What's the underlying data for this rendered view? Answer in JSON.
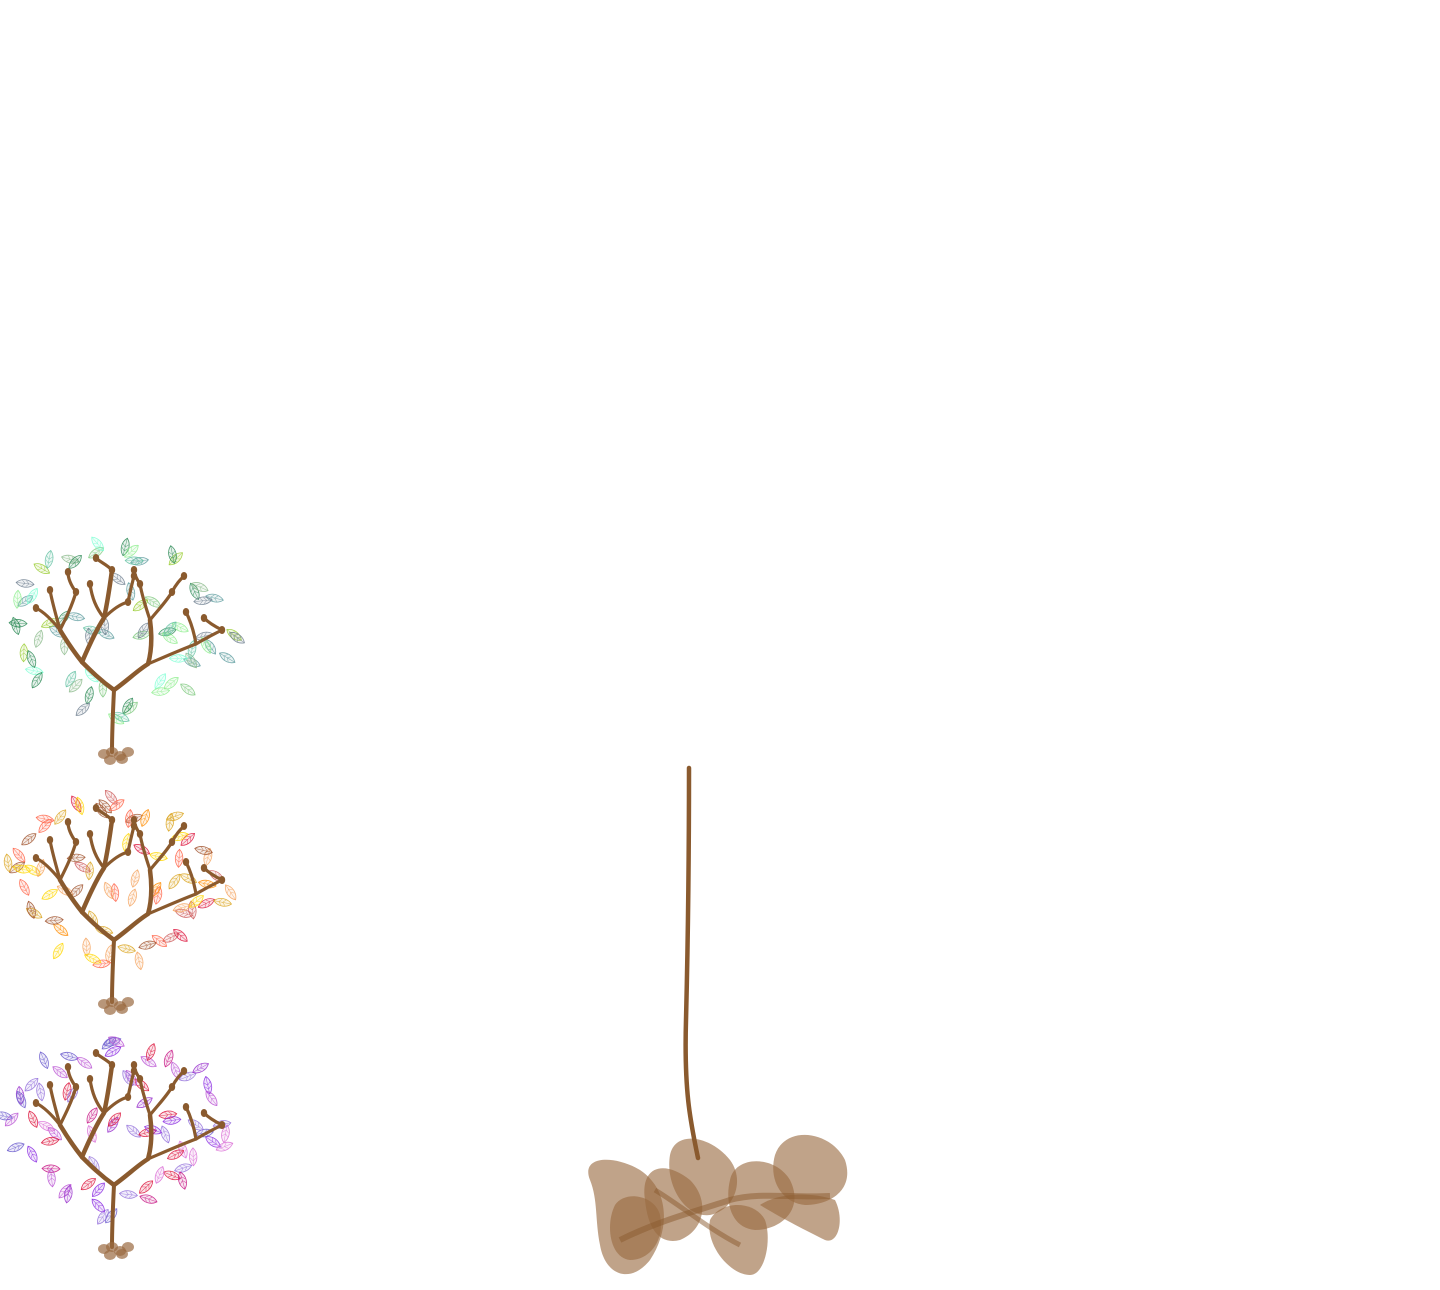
{
  "colors": {
    "background": "#ffffff",
    "trunk": "#8a5a2e",
    "root_blob": "#9a6a40"
  },
  "thumbnails": [
    {
      "palette_name": "green-teal",
      "leaf_colors": [
        "#7fc97f",
        "#66c2a5",
        "#90ee90",
        "#8fbc8f",
        "#9acd32",
        "#5f9ea0",
        "#2e8b57",
        "#7fffd4",
        "#708090"
      ]
    },
    {
      "palette_name": "red-orange-yellow",
      "leaf_colors": [
        "#dc143c",
        "#ff8c00",
        "#ffd700",
        "#cd5c5c",
        "#f4a460",
        "#ff6347",
        "#a0522d",
        "#daa520"
      ]
    },
    {
      "palette_name": "purple-magenta",
      "leaf_colors": [
        "#9932cc",
        "#ba55d3",
        "#8a2be2",
        "#c71585",
        "#9370db",
        "#da70d6",
        "#dc143c",
        "#6a5acd"
      ]
    }
  ]
}
